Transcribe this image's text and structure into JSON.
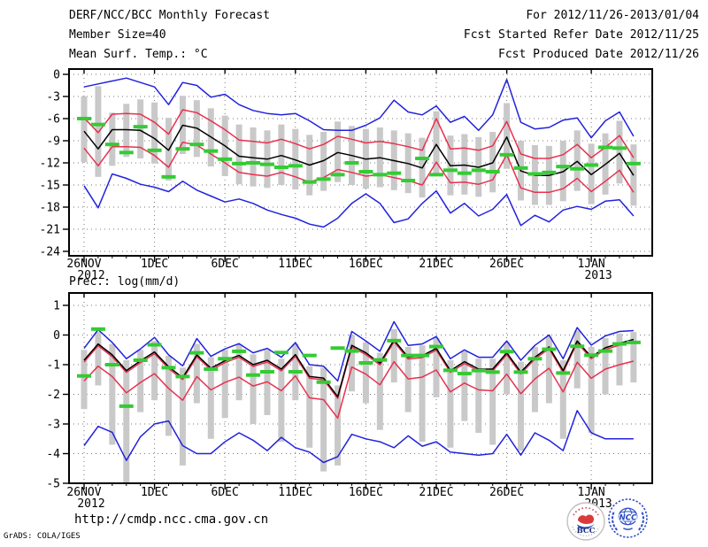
{
  "header": {
    "left_lines": [
      "DERF/NCC/BCC Monthly Forecast",
      "Member Size=40",
      "Mean Surf. Temp.: °C"
    ],
    "right_lines": [
      "For 2012/11/26-2013/01/04",
      "Fcst Started Refer Date 2012/11/25",
      "Fcst Produced Date 2012/11/26"
    ]
  },
  "footer": {
    "url": "http://cmdp.ncc.cma.gov.cn",
    "credit": "GrADS: COLA/IGES",
    "logos": [
      {
        "label": "BCC"
      },
      {
        "label": "NCC"
      }
    ]
  },
  "colors": {
    "mean": "#000000",
    "spread": "#e8304f",
    "envelope": "#2222dd",
    "obs": "#33cc33",
    "bar": "#c9c9c9",
    "grid": "#7a7a7a"
  },
  "chart_data": [
    {
      "type": "line",
      "id": "temperature-panel",
      "title": "Mean Surf. Temp.: °C",
      "n_points": 40,
      "x": {
        "tick_labels": [
          "26NOV",
          "1DEC",
          "6DEC",
          "11DEC",
          "16DEC",
          "21DEC",
          "26DEC",
          "1JAN"
        ],
        "tick_positions": [
          0,
          5,
          10,
          15,
          20,
          25,
          30,
          36
        ],
        "tick_sublabels": {
          "26NOV": "2012",
          "1JAN": "2013"
        }
      },
      "y": {
        "ticks": [
          0,
          -3,
          -6,
          -9,
          -12,
          -15,
          -18,
          -21,
          -24
        ],
        "ylim": [
          -24.6,
          0.7
        ],
        "grid": true
      },
      "series": [
        {
          "id": "ensemble-max",
          "color": "#2222dd",
          "values": [
            -1.7,
            -1.3,
            -0.9,
            -0.5,
            -1.1,
            -1.7,
            -4.1,
            -1.1,
            -1.5,
            -3.1,
            -2.7,
            -4.1,
            -4.9,
            -5.3,
            -5.5,
            -5.3,
            -6.3,
            -7.5,
            -7.6,
            -7.6,
            -6.9,
            -5.9,
            -3.5,
            -5.1,
            -5.5,
            -4.3,
            -6.5,
            -5.7,
            -7.6,
            -5.5,
            -0.7,
            -6.5,
            -7.4,
            -7.2,
            -6.2,
            -5.9,
            -8.6,
            -6.3,
            -5.1,
            -8.4
          ]
        },
        {
          "id": "upper-spread",
          "color": "#e8304f",
          "values": [
            -5.9,
            -7.9,
            -5.4,
            -5.3,
            -5.4,
            -6.5,
            -8.1,
            -4.8,
            -5.2,
            -6.3,
            -7.5,
            -8.9,
            -9.1,
            -9.3,
            -8.8,
            -9.4,
            -10.1,
            -9.5,
            -8.4,
            -8.8,
            -9.3,
            -9.1,
            -9.4,
            -9.8,
            -10.3,
            -6.0,
            -10.1,
            -10.0,
            -10.3,
            -9.7,
            -6.4,
            -10.8,
            -11.4,
            -11.4,
            -10.9,
            -9.5,
            -11.3,
            -9.9,
            -8.3,
            -11.3
          ]
        },
        {
          "id": "lower-spread",
          "color": "#e8304f",
          "values": [
            -10.0,
            -12.4,
            -9.8,
            -9.8,
            -9.9,
            -11.0,
            -12.6,
            -9.2,
            -9.6,
            -10.8,
            -12.0,
            -13.3,
            -13.6,
            -13.8,
            -13.3,
            -13.9,
            -14.6,
            -14.0,
            -12.9,
            -13.3,
            -13.8,
            -13.6,
            -14.0,
            -14.4,
            -15.0,
            -11.9,
            -14.7,
            -14.6,
            -14.9,
            -14.3,
            -10.9,
            -15.4,
            -16.0,
            -16.0,
            -15.5,
            -14.1,
            -15.9,
            -14.5,
            -13.0,
            -16.0
          ]
        },
        {
          "id": "ensemble-mean",
          "color": "#000000",
          "values": [
            -7.7,
            -10.1,
            -7.5,
            -7.5,
            -7.6,
            -8.7,
            -10.3,
            -6.9,
            -7.3,
            -8.5,
            -9.7,
            -11.1,
            -11.3,
            -11.5,
            -11.0,
            -11.6,
            -12.3,
            -11.7,
            -10.6,
            -11.0,
            -11.5,
            -11.3,
            -11.7,
            -12.1,
            -12.7,
            -9.5,
            -12.4,
            -12.3,
            -12.6,
            -12.0,
            -8.5,
            -13.1,
            -13.7,
            -13.7,
            -13.2,
            -11.8,
            -13.6,
            -12.2,
            -10.7,
            -13.7
          ]
        },
        {
          "id": "ensemble-min",
          "color": "#2222dd",
          "values": [
            -15.1,
            -18.1,
            -13.5,
            -14.1,
            -14.9,
            -15.3,
            -15.9,
            -14.5,
            -15.7,
            -16.5,
            -17.3,
            -16.9,
            -17.5,
            -18.4,
            -19.0,
            -19.5,
            -20.3,
            -20.7,
            -19.5,
            -17.5,
            -16.2,
            -17.5,
            -20.1,
            -19.6,
            -17.5,
            -15.8,
            -18.8,
            -17.5,
            -19.2,
            -18.3,
            -16.3,
            -20.5,
            -19.1,
            -20.0,
            -18.4,
            -17.9,
            -18.3,
            -17.2,
            -17.0,
            -19.2
          ]
        }
      ],
      "bars": {
        "color": "#c9c9c9",
        "top": [
          -3.0,
          -1.6,
          -5.2,
          -4.0,
          -3.4,
          -3.8,
          -5.9,
          -2.9,
          -3.5,
          -4.6,
          -5.6,
          -6.8,
          -7.2,
          -7.6,
          -6.8,
          -7.4,
          -8.2,
          -7.8,
          -6.4,
          -7.0,
          -7.4,
          -7.2,
          -7.6,
          -8.0,
          -8.6,
          -5.0,
          -8.3,
          -8.1,
          -8.5,
          -7.8,
          -3.9,
          -9.0,
          -9.6,
          -9.7,
          -9.0,
          -7.6,
          -9.4,
          -8.0,
          -6.3,
          -9.5
        ],
        "bottom": [
          -11.9,
          -13.9,
          -12.4,
          -11.2,
          -11.4,
          -12.1,
          -14.4,
          -10.8,
          -11.2,
          -12.5,
          -13.8,
          -14.9,
          -15.2,
          -15.4,
          -15.0,
          -15.6,
          -16.4,
          -15.8,
          -14.6,
          -15.0,
          -15.5,
          -15.3,
          -15.7,
          -16.1,
          -16.7,
          -13.8,
          -16.4,
          -16.3,
          -16.6,
          -16.0,
          -12.8,
          -17.1,
          -17.7,
          -17.7,
          -17.2,
          -15.8,
          -17.6,
          -16.3,
          -14.8,
          -17.8
        ]
      },
      "obs": {
        "id": "observation",
        "color": "#33cc33",
        "values": [
          -6.0,
          -6.8,
          -9.5,
          -10.6,
          -7.1,
          -10.3,
          -13.9,
          -10.1,
          -9.5,
          -10.4,
          -11.5,
          -12.1,
          -12.0,
          -12.2,
          -12.6,
          -12.4,
          -14.6,
          -14.2,
          -13.6,
          -12.0,
          -13.2,
          -13.6,
          -13.4,
          -14.4,
          -11.4,
          -13.6,
          -13.0,
          -13.4,
          -13.0,
          -13.2,
          -10.9,
          -12.7,
          -13.5,
          -13.3,
          -12.5,
          -12.8,
          -12.3,
          -9.9,
          -10.0,
          -12.1
        ]
      }
    },
    {
      "type": "line",
      "id": "precipitation-panel",
      "title": "Prec.: log(mm/d)",
      "n_points": 40,
      "x": {
        "tick_labels": [
          "26NOV",
          "1DEC",
          "6DEC",
          "11DEC",
          "16DEC",
          "21DEC",
          "26DEC",
          "1JAN"
        ],
        "tick_positions": [
          0,
          5,
          10,
          15,
          20,
          25,
          30,
          36
        ],
        "tick_sublabels": {
          "26NOV": "2012",
          "1JAN": "2013"
        }
      },
      "y": {
        "ticks": [
          1,
          0,
          -1,
          -2,
          -3,
          -4,
          -5
        ],
        "ylim": [
          -5,
          1.42
        ],
        "grid": true
      },
      "series": [
        {
          "id": "ensemble-max",
          "color": "#2222dd",
          "values": [
            -0.45,
            0.18,
            -0.25,
            -0.8,
            -0.47,
            -0.08,
            -0.67,
            -1.04,
            -0.12,
            -0.72,
            -0.47,
            -0.29,
            -0.6,
            -0.45,
            -0.75,
            -0.26,
            -1.0,
            -1.05,
            -1.55,
            0.12,
            -0.2,
            -0.55,
            0.45,
            -0.35,
            -0.3,
            -0.05,
            -0.8,
            -0.5,
            -0.75,
            -0.75,
            -0.2,
            -0.85,
            -0.35,
            0.0,
            -0.8,
            0.25,
            -0.34,
            -0.03,
            0.12,
            0.15
          ]
        },
        {
          "id": "upper-spread",
          "color": "#e8304f",
          "values": [
            -0.91,
            -0.36,
            -0.73,
            -1.26,
            -0.93,
            -0.63,
            -1.13,
            -1.5,
            -0.73,
            -1.18,
            -0.93,
            -0.75,
            -1.06,
            -0.91,
            -1.21,
            -0.72,
            -1.46,
            -1.51,
            -2.14,
            -0.41,
            -0.66,
            -1.01,
            -0.23,
            -0.81,
            -0.76,
            -0.51,
            -1.26,
            -0.96,
            -1.21,
            -1.21,
            -0.66,
            -1.31,
            -0.81,
            -0.46,
            -1.26,
            -0.26,
            -0.8,
            -0.49,
            -0.34,
            -0.21
          ]
        },
        {
          "id": "lower-spread",
          "color": "#e8304f",
          "values": [
            -1.55,
            -1.05,
            -1.4,
            -1.95,
            -1.6,
            -1.3,
            -1.8,
            -2.2,
            -1.4,
            -1.85,
            -1.6,
            -1.42,
            -1.72,
            -1.58,
            -1.88,
            -1.38,
            -2.12,
            -2.18,
            -2.8,
            -1.08,
            -1.32,
            -1.68,
            -0.9,
            -1.48,
            -1.42,
            -1.18,
            -1.92,
            -1.62,
            -1.85,
            -1.88,
            -1.32,
            -1.98,
            -1.48,
            -1.12,
            -1.92,
            -0.92,
            -1.46,
            -1.15,
            -1.0,
            -0.88
          ]
        },
        {
          "id": "ensemble-mean",
          "color": "#000000",
          "values": [
            -0.85,
            -0.3,
            -0.67,
            -1.2,
            -0.87,
            -0.57,
            -1.07,
            -1.44,
            -0.67,
            -1.12,
            -0.87,
            -0.69,
            -1.0,
            -0.85,
            -1.15,
            -0.66,
            -1.4,
            -1.45,
            -2.08,
            -0.35,
            -0.6,
            -0.95,
            -0.17,
            -0.75,
            -0.7,
            -0.45,
            -1.2,
            -0.9,
            -1.15,
            -1.15,
            -0.6,
            -1.25,
            -0.75,
            -0.4,
            -1.2,
            -0.2,
            -0.74,
            -0.43,
            -0.28,
            -0.15
          ]
        },
        {
          "id": "ensemble-min",
          "color": "#2222dd",
          "values": [
            -3.73,
            -3.08,
            -3.28,
            -4.23,
            -3.43,
            -3.0,
            -2.9,
            -3.73,
            -4.0,
            -4.0,
            -3.6,
            -3.3,
            -3.55,
            -3.9,
            -3.45,
            -3.8,
            -3.95,
            -4.3,
            -4.1,
            -3.35,
            -3.5,
            -3.6,
            -3.8,
            -3.4,
            -3.75,
            -3.6,
            -3.95,
            -4.0,
            -4.05,
            -4.0,
            -3.35,
            -4.05,
            -3.3,
            -3.55,
            -3.9,
            -2.55,
            -3.3,
            -3.5,
            -3.5,
            -3.5
          ]
        }
      ],
      "bars": {
        "color": "#c9c9c9",
        "top": [
          -0.5,
          0.1,
          -0.3,
          -0.85,
          -0.5,
          -0.2,
          -0.7,
          -1.1,
          -0.3,
          -0.75,
          -0.5,
          -0.32,
          -0.65,
          -0.5,
          -0.8,
          -0.3,
          -1.05,
          -1.1,
          -1.7,
          0.0,
          -0.25,
          -0.6,
          0.2,
          -0.4,
          -0.35,
          -0.1,
          -0.85,
          -0.55,
          -0.8,
          -0.8,
          -0.25,
          -0.9,
          -0.4,
          -0.05,
          -0.85,
          0.15,
          -0.4,
          -0.1,
          0.05,
          0.1
        ],
        "bottom": [
          -2.5,
          -1.7,
          -3.7,
          -5.0,
          -2.6,
          -2.2,
          -3.4,
          -4.4,
          -2.3,
          -3.5,
          -2.8,
          -2.2,
          -3.0,
          -2.7,
          -3.6,
          -2.2,
          -3.8,
          -4.6,
          -4.4,
          -1.9,
          -2.3,
          -3.2,
          -1.6,
          -2.6,
          -3.6,
          -2.1,
          -3.8,
          -2.9,
          -3.3,
          -3.7,
          -2.0,
          -3.9,
          -2.6,
          -2.3,
          -3.5,
          -1.8,
          -3.3,
          -2.0,
          -1.7,
          -1.6
        ]
      },
      "obs": {
        "id": "observation",
        "color": "#33cc33",
        "values": [
          -1.38,
          0.2,
          -1.0,
          -2.4,
          -0.85,
          -0.33,
          -1.1,
          -1.4,
          -0.6,
          -1.15,
          -0.8,
          -0.55,
          -1.35,
          -1.24,
          -0.59,
          -1.24,
          -0.69,
          -1.59,
          -0.44,
          -0.54,
          -0.94,
          -0.84,
          -0.19,
          -0.69,
          -0.69,
          -0.39,
          -1.19,
          -1.3,
          -1.2,
          -1.25,
          -0.56,
          -1.25,
          -0.8,
          -0.48,
          -1.28,
          -0.38,
          -0.68,
          -0.54,
          -0.3,
          -0.25
        ]
      }
    }
  ]
}
